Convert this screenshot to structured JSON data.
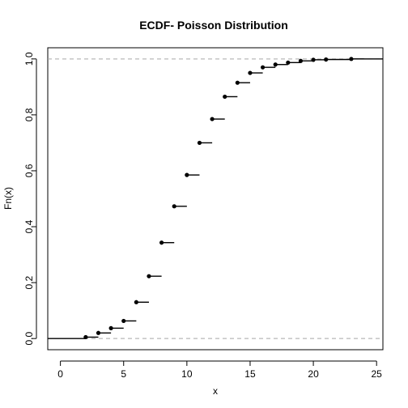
{
  "chart_data": {
    "type": "scatter",
    "title": "ECDF- Poisson Distribution",
    "xlabel": "x",
    "ylabel": "Fn(x)",
    "xlim": [
      -1,
      25.5
    ],
    "ylim": [
      -0.04,
      1.04
    ],
    "x_ticks": [
      "0",
      "5",
      "10",
      "15",
      "20",
      "25"
    ],
    "y_ticks": [
      "0.0",
      "0.2",
      "0.4",
      "0.6",
      "0.8",
      "1.0"
    ],
    "reference_lines": [
      0,
      1
    ],
    "points": [
      {
        "x": 2,
        "y": 0.005
      },
      {
        "x": 3,
        "y": 0.02
      },
      {
        "x": 4,
        "y": 0.037
      },
      {
        "x": 5,
        "y": 0.063
      },
      {
        "x": 6,
        "y": 0.13
      },
      {
        "x": 7,
        "y": 0.223
      },
      {
        "x": 8,
        "y": 0.343
      },
      {
        "x": 9,
        "y": 0.473
      },
      {
        "x": 10,
        "y": 0.585
      },
      {
        "x": 11,
        "y": 0.7
      },
      {
        "x": 12,
        "y": 0.785
      },
      {
        "x": 13,
        "y": 0.865
      },
      {
        "x": 14,
        "y": 0.915
      },
      {
        "x": 15,
        "y": 0.95
      },
      {
        "x": 16,
        "y": 0.97
      },
      {
        "x": 17,
        "y": 0.98
      },
      {
        "x": 18,
        "y": 0.987
      },
      {
        "x": 19,
        "y": 0.993
      },
      {
        "x": 20,
        "y": 0.997
      },
      {
        "x": 21,
        "y": 0.998
      },
      {
        "x": 23,
        "y": 1.0
      }
    ]
  }
}
